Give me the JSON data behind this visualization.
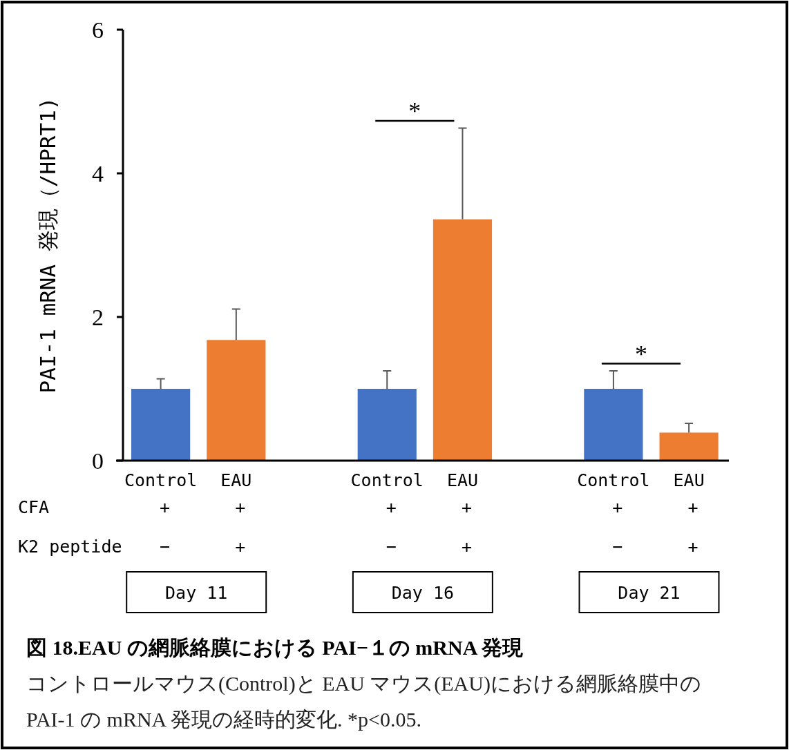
{
  "chart_data": {
    "type": "bar",
    "title": "図 18.EAU の網脈絡膜における PAI−１の mRNA 発現",
    "subtitle": "コントロールマウス(Control)と EAU マウス(EAU)における網脈絡膜中の PAI-1 の mRNA 発現の経時的変化. *p<0.05.",
    "ylabel": "PAI-1 mRNA 発現（/HPRT1)",
    "categories": [
      "Control",
      "EAU",
      "Control",
      "EAU",
      "Control",
      "EAU"
    ],
    "values": [
      1.0,
      1.68,
      1.0,
      3.36,
      1.0,
      0.39
    ],
    "errors": [
      [
        1.0,
        1.14
      ],
      [
        1.68,
        2.11
      ],
      [
        1.0,
        1.25
      ],
      [
        3.36,
        4.63
      ],
      [
        1.0,
        1.25
      ],
      [
        0.39,
        0.52
      ]
    ],
    "colors": [
      "#4472c4",
      "#ed7d31",
      "#4472c4",
      "#ed7d31",
      "#4472c4",
      "#ed7d31"
    ],
    "ylim": [
      0,
      6
    ],
    "yticks": [
      0,
      2,
      4,
      6
    ],
    "grid": false,
    "annotations": [
      "*",
      "*",
      "CFA",
      "K2 peptide",
      "+",
      "+",
      "+",
      "+",
      "+",
      "+",
      "−",
      "+",
      "−",
      "+",
      "−",
      "+",
      "Day 11",
      "Day 16",
      "Day 21"
    ]
  }
}
